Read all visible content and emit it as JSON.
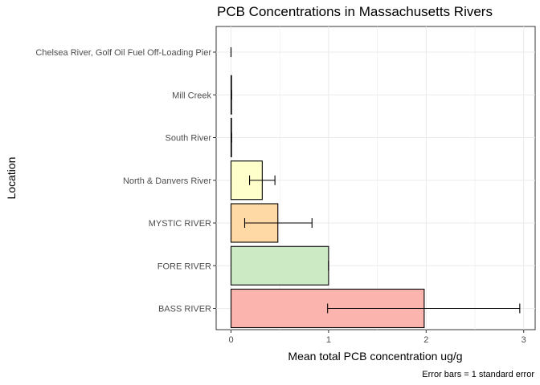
{
  "chart_data": {
    "type": "bar",
    "orientation": "horizontal",
    "title": "PCB Concentrations in Massachusetts Rivers",
    "xlabel": "Mean total PCB concentration ug/g",
    "ylabel": "Location",
    "caption": "Error bars = 1 standard error",
    "xlim": [
      0,
      3
    ],
    "xticks": [
      "0",
      "1",
      "2",
      "3"
    ],
    "grid": true,
    "legend": "none",
    "categories": [
      "BASS RIVER",
      "FORE RIVER",
      "MYSTIC RIVER",
      "North & Danvers River",
      "South River",
      "Mill Creek",
      "Chelsea River, Golf Oil Fuel Off-Loading Pier"
    ],
    "values": [
      1.98,
      1.0,
      0.48,
      0.32,
      0.005,
      0.005,
      0.0
    ],
    "error_low": [
      0.99,
      1.0,
      0.14,
      0.19,
      0.005,
      0.005,
      0.0
    ],
    "error_high": [
      2.96,
      1.0,
      0.83,
      0.45,
      0.005,
      0.005,
      0.0
    ],
    "colors": [
      "#FBB4AE",
      "#CCEBC5",
      "#FED9A6",
      "#FFFFCC",
      "#FFFFCC",
      "#FFFFCC",
      "#FFFFCC"
    ]
  }
}
